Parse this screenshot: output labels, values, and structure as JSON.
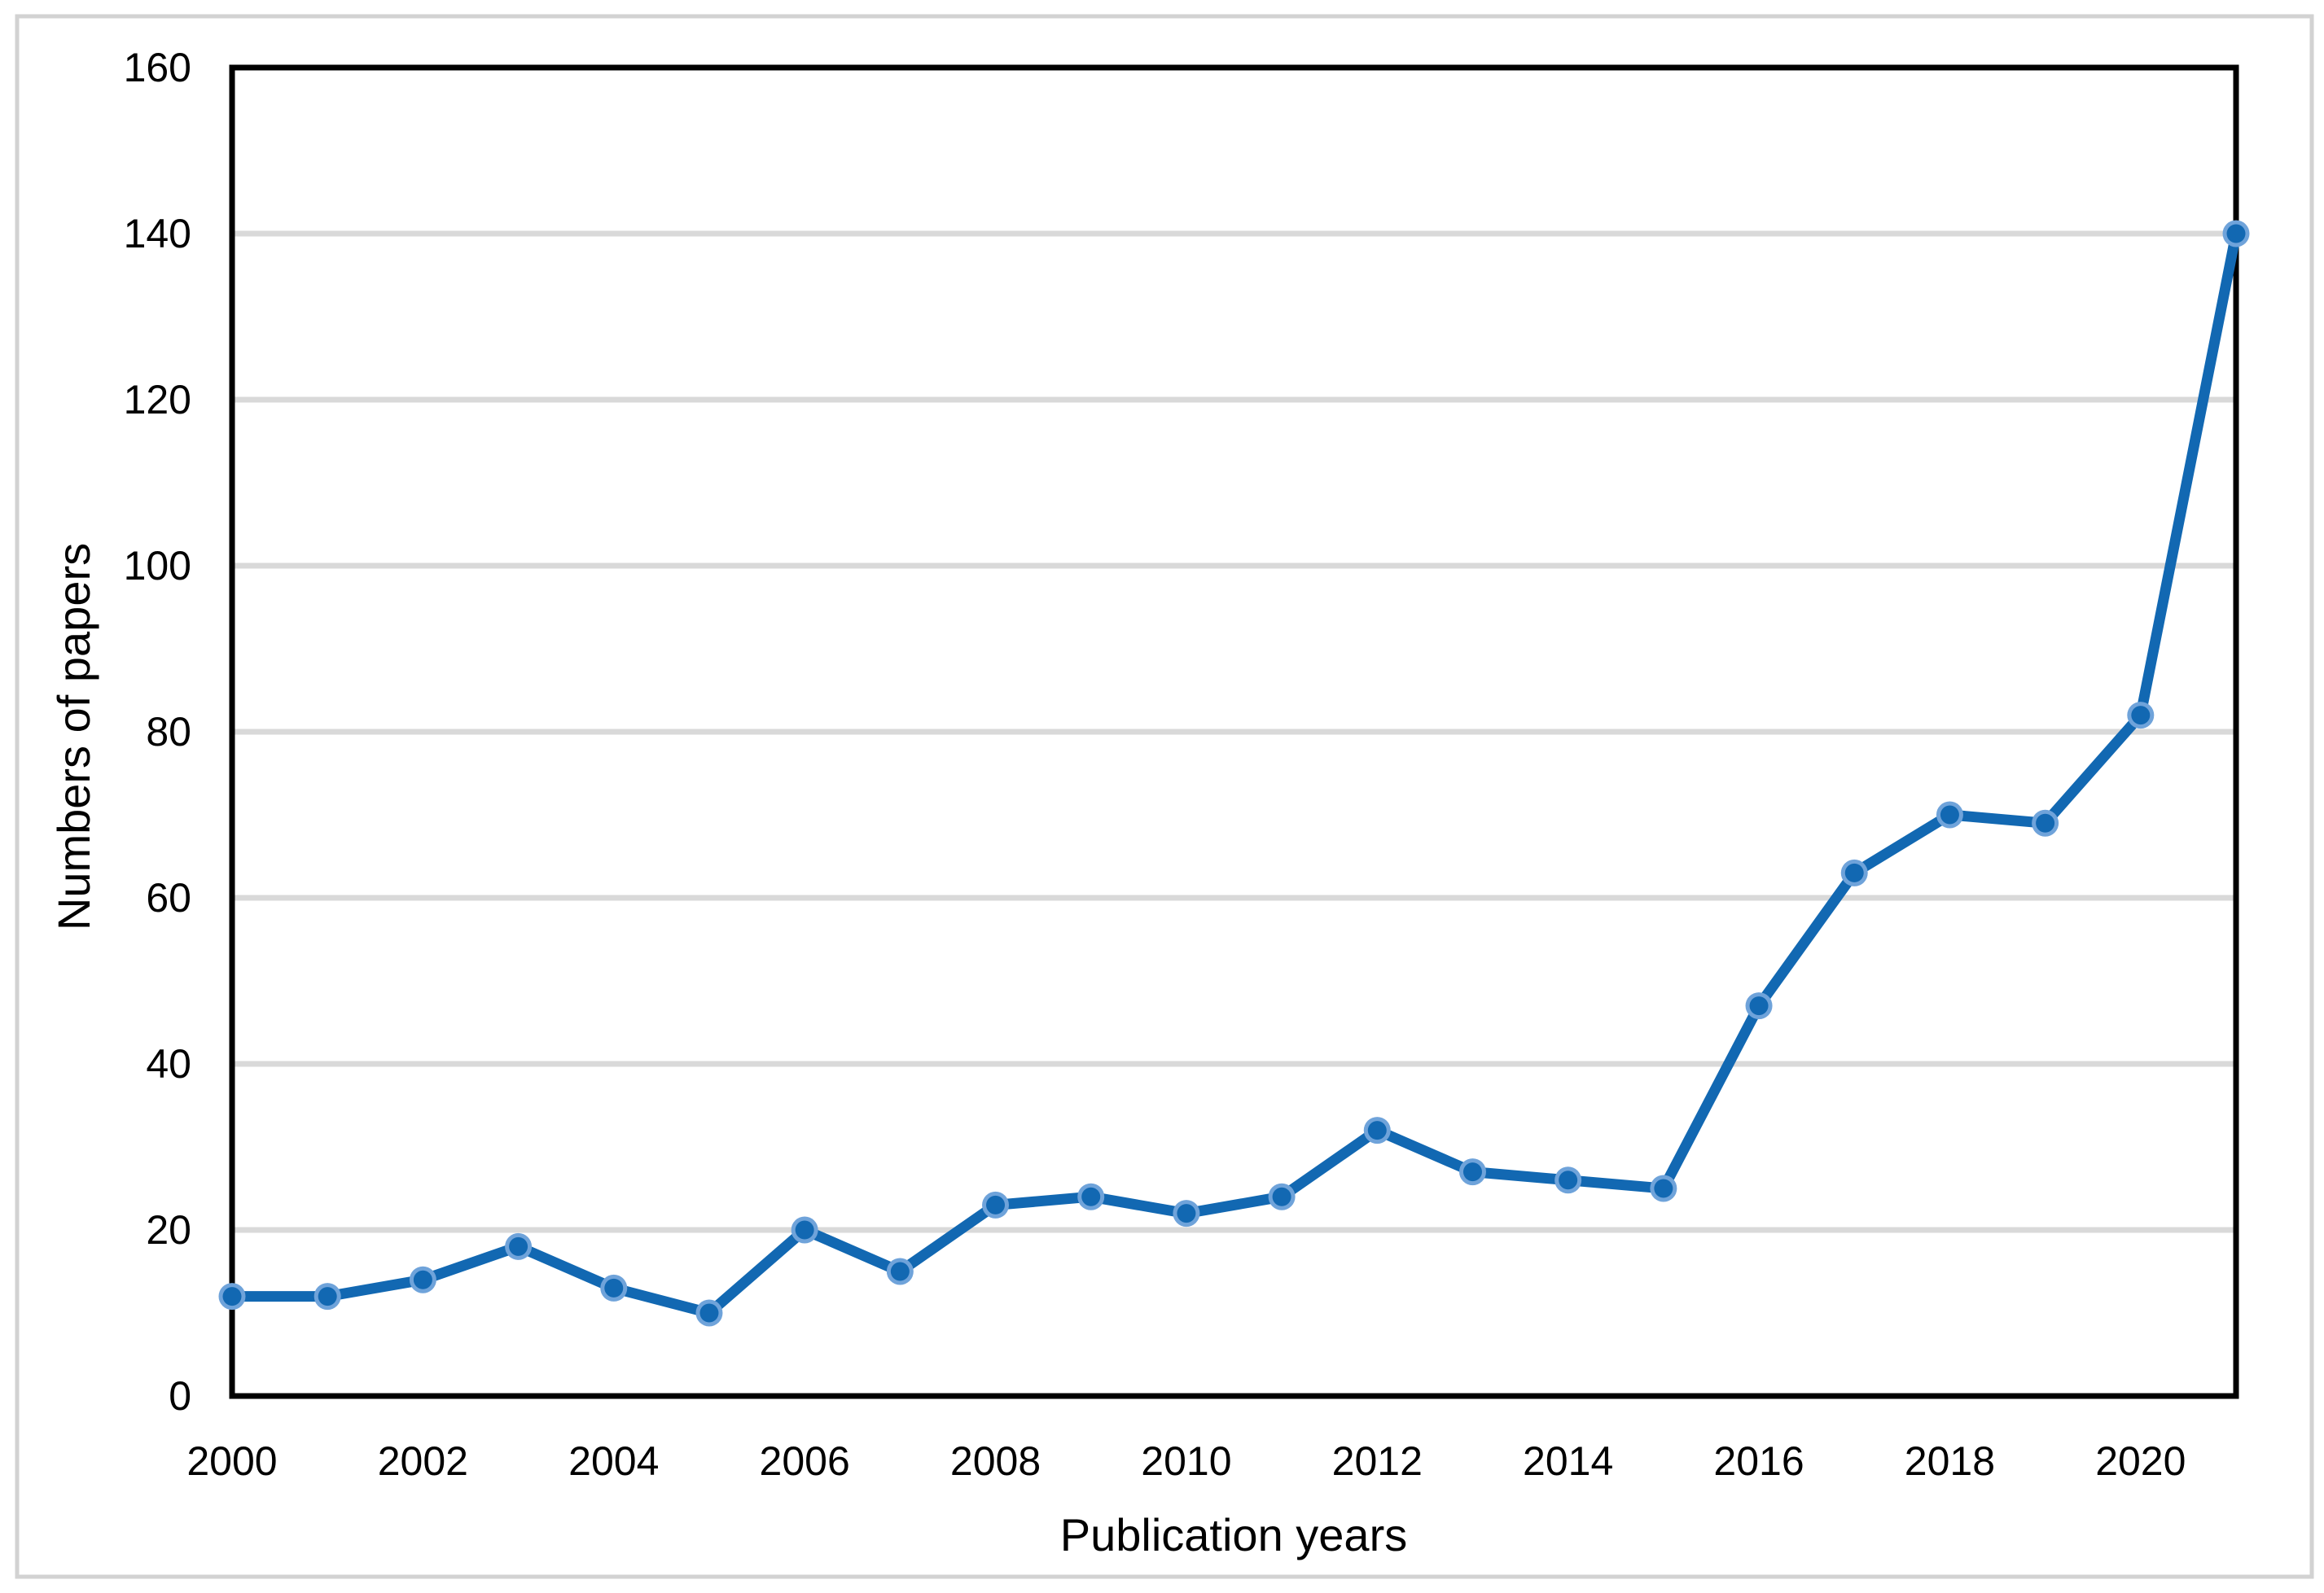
{
  "chart_data": {
    "type": "line",
    "title": "",
    "xlabel": "Publication years",
    "ylabel": "Numbers of papers",
    "x": [
      2000,
      2001,
      2002,
      2003,
      2004,
      2005,
      2006,
      2007,
      2008,
      2009,
      2010,
      2011,
      2012,
      2013,
      2014,
      2015,
      2016,
      2017,
      2018,
      2019,
      2020,
      2021
    ],
    "series": [
      {
        "name": "Numbers of papers",
        "values": [
          12,
          12,
          14,
          18,
          13,
          10,
          20,
          15,
          23,
          24,
          22,
          24,
          32,
          27,
          26,
          25,
          47,
          63,
          70,
          69,
          82,
          140
        ]
      }
    ],
    "ylim": [
      0,
      160
    ],
    "yticks": [
      0,
      20,
      40,
      60,
      80,
      100,
      120,
      140,
      160
    ],
    "xticks": [
      2000,
      2002,
      2004,
      2006,
      2008,
      2010,
      2012,
      2014,
      2016,
      2018,
      2020
    ],
    "grid": "horizontal",
    "legend": "none",
    "colors": {
      "line": "#1268b2",
      "marker_fill": "#1268b2",
      "marker_ring": "#6fa3da",
      "gridline": "#d9d9d9",
      "axis": "#000000",
      "text": "#000000",
      "figure_border": "#d2d2d2",
      "background": "#ffffff"
    }
  }
}
